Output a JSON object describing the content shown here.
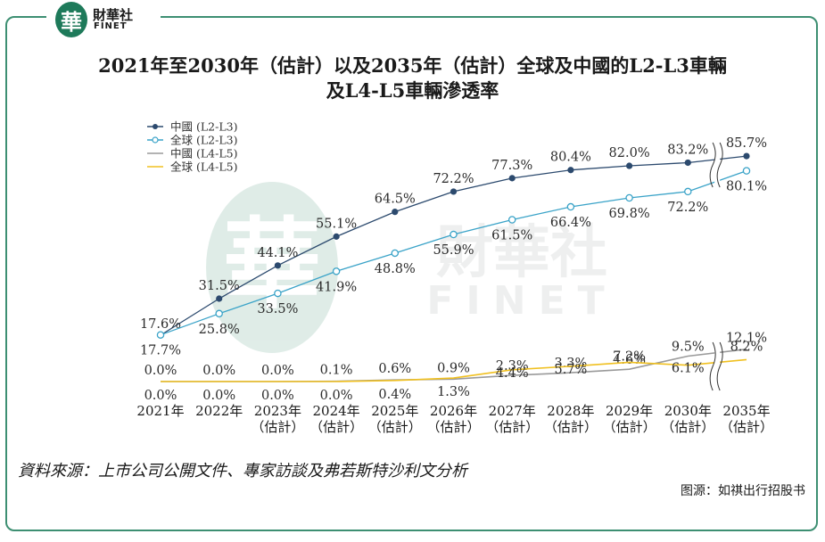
{
  "logo": {
    "glyph": "華",
    "name_cn": "財華社",
    "name_en": "FINET"
  },
  "watermark": {
    "glyph": "華",
    "name_cn": "財華社",
    "name_en": "FINET"
  },
  "source_note": "資料來源：上市公司公開文件、專家訪談及弗若斯特沙利文分析",
  "credit": "图源：如祺出行招股书",
  "colors": {
    "frame": "#3d8f72",
    "china_l2l3": "#2c4a6e",
    "global_l2l3": "#3aa3c8",
    "china_l4l5": "#9a9a9a",
    "global_l4l5": "#f0c020"
  },
  "chart_data": {
    "type": "line",
    "title_line1": "2021年至2030年（估計）以及2035年（估計）全球及中國的L2-L3車輛",
    "title_line2": "及L4-L5車輛滲透率",
    "categories": [
      {
        "year": "2021年",
        "sub": ""
      },
      {
        "year": "2022年",
        "sub": ""
      },
      {
        "year": "2023年",
        "sub": "（估計）"
      },
      {
        "year": "2024年",
        "sub": "（估計）"
      },
      {
        "year": "2025年",
        "sub": "（估計）"
      },
      {
        "year": "2026年",
        "sub": "（估計）"
      },
      {
        "year": "2027年",
        "sub": "（估計）"
      },
      {
        "year": "2028年",
        "sub": "（估計）"
      },
      {
        "year": "2029年",
        "sub": "（估計）"
      },
      {
        "year": "2030年",
        "sub": "（估計）"
      },
      {
        "year": "2035年",
        "sub": "（估計）"
      }
    ],
    "unit": "%",
    "axis_break_between": [
      "2030年",
      "2035年"
    ],
    "ylim": [
      0,
      100
    ],
    "series": [
      {
        "name": "中國 (L2-L3)",
        "key": "china_l2l3",
        "marker": "filled",
        "values": [
          17.6,
          31.5,
          44.1,
          55.1,
          64.5,
          72.2,
          77.3,
          80.4,
          82.0,
          83.2,
          85.7
        ],
        "labels": [
          "17.6%",
          "31.5%",
          "44.1%",
          "55.1%",
          "64.5%",
          "72.2%",
          "77.3%",
          "80.4%",
          "82.0%",
          "83.2%",
          "85.7%"
        ]
      },
      {
        "name": "全球 (L2-L3)",
        "key": "global_l2l3",
        "marker": "hollow",
        "values": [
          17.7,
          25.8,
          33.5,
          41.9,
          48.8,
          55.9,
          61.5,
          66.4,
          69.8,
          72.2,
          80.1
        ],
        "labels": [
          "17.7%",
          "25.8%",
          "33.5%",
          "41.9%",
          "48.8%",
          "55.9%",
          "61.5%",
          "66.4%",
          "69.8%",
          "72.2%",
          "80.1%"
        ]
      },
      {
        "name": "中國 (L4-L5)",
        "key": "china_l4l5",
        "marker": "none",
        "values": [
          0.0,
          0.0,
          0.0,
          0.1,
          0.6,
          0.9,
          2.3,
          3.3,
          4.6,
          9.5,
          12.1
        ],
        "labels": [
          "0.0%",
          "0.0%",
          "0.0%",
          "0.1%",
          "0.6%",
          "0.9%",
          "2.3%",
          "3.3%",
          "4.6%",
          "9.5%",
          "12.1%"
        ]
      },
      {
        "name": "全球 (L4-L5)",
        "key": "global_l4l5",
        "marker": "none",
        "values": [
          0.0,
          0.0,
          0.0,
          0.0,
          0.4,
          1.3,
          4.4,
          5.7,
          7.2,
          6.1,
          8.2
        ],
        "labels": [
          "0.0%",
          "0.0%",
          "0.0%",
          "0.0%",
          "0.4%",
          "1.3%",
          "4.4%",
          "5.7%",
          "7.2%",
          "6.1%",
          "8.2%"
        ]
      }
    ],
    "legend": [
      "中國 (L2-L3)",
      "全球 (L2-L3)",
      "中國 (L4-L5)",
      "全球 (L4-L5)"
    ],
    "legend_position": "top-left",
    "grid": false
  }
}
